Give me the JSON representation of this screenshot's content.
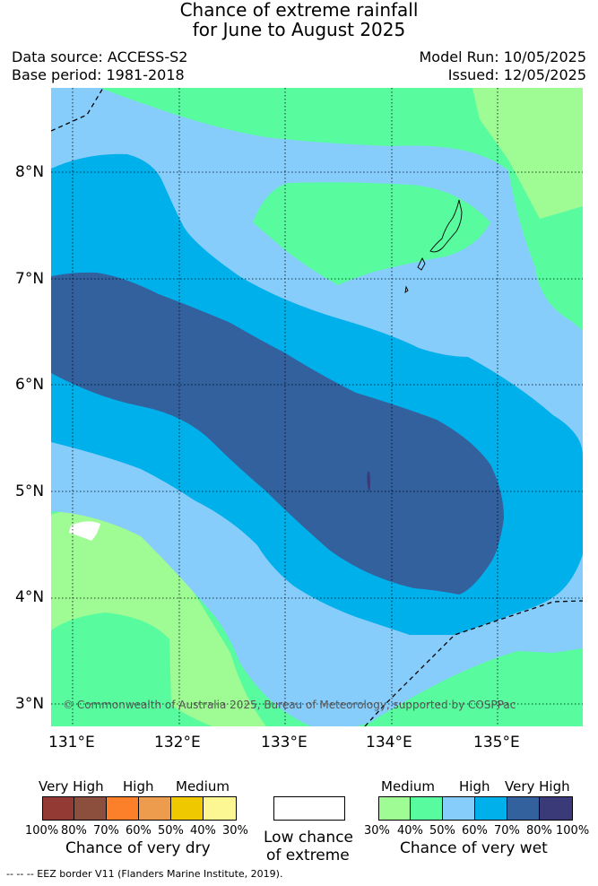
{
  "title": {
    "line1": "Chance of extreme rainfall",
    "line2": "for June to August 2025"
  },
  "meta": {
    "data_source": "Data source: ACCESS-S2",
    "base_period": "Base period: 1981-2018",
    "model_run": "Model Run: 10/05/2025",
    "issued": "Issued: 12/05/2025"
  },
  "map": {
    "lat_labels": [
      "8°N",
      "7°N",
      "6°N",
      "5°N",
      "4°N",
      "3°N"
    ],
    "lon_labels": [
      "131°E",
      "132°E",
      "133°E",
      "134°E",
      "135°E"
    ],
    "attribution": "© Commonwealth of Australia 2025, Bureau of Meteorology, supported by COSPPac",
    "colors": {
      "wet_30_40": "#9ffb94",
      "wet_40_50": "#58fc9f",
      "wet_50_60": "#87cdfb",
      "wet_60_70": "#00b0eb",
      "wet_70_80": "#33619e",
      "wet_80_100": "#3a3a78",
      "low_chance": "#ffffff"
    }
  },
  "legend": {
    "dry": {
      "group_labels": [
        "Very High",
        "High",
        "Medium"
      ],
      "percent_labels": [
        "100%",
        "80%",
        "70%",
        "60%",
        "50%",
        "40%",
        "30%"
      ],
      "caption": "Chance of very dry",
      "colors": [
        "#923a33",
        "#8c4f3d",
        "#fc7f2a",
        "#ec9c4c",
        "#efc800",
        "#fdf793"
      ]
    },
    "low": {
      "line1": "Low chance",
      "line2": "of extreme",
      "color": "#ffffff"
    },
    "wet": {
      "group_labels": [
        "Medium",
        "High",
        "Very High"
      ],
      "percent_labels": [
        "30%",
        "40%",
        "50%",
        "60%",
        "70%",
        "80%",
        "100%"
      ],
      "caption": "Chance of very wet",
      "colors": [
        "#9ffb94",
        "#58fc9f",
        "#87cdfb",
        "#00b0eb",
        "#33619e",
        "#3a3a78"
      ]
    }
  },
  "footer": "--  --  -- EEZ border V11 (Flanders Marine Institute, 2019)."
}
